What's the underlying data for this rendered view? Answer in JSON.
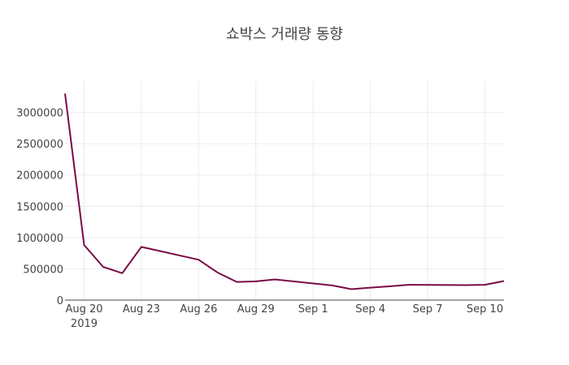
{
  "chart_data": {
    "type": "line",
    "title": "쇼박스 거래량 동향",
    "xlabel": "",
    "ylabel": "",
    "x_range": [
      "2019-08-19",
      "2019-09-11"
    ],
    "ylim": [
      0,
      3500000
    ],
    "grid": true,
    "line_color": "#7a0a46",
    "x_ticks": [
      {
        "date": "2019-08-20",
        "label": "Aug 20",
        "sublabel": "2019"
      },
      {
        "date": "2019-08-23",
        "label": "Aug 23"
      },
      {
        "date": "2019-08-26",
        "label": "Aug 26"
      },
      {
        "date": "2019-08-29",
        "label": "Aug 29"
      },
      {
        "date": "2019-09-01",
        "label": "Sep 1"
      },
      {
        "date": "2019-09-04",
        "label": "Sep 4"
      },
      {
        "date": "2019-09-07",
        "label": "Sep 7"
      },
      {
        "date": "2019-09-10",
        "label": "Sep 10"
      }
    ],
    "y_ticks": [
      {
        "value": 0,
        "label": "0"
      },
      {
        "value": 500000,
        "label": "500000"
      },
      {
        "value": 1000000,
        "label": "1000000"
      },
      {
        "value": 1500000,
        "label": "1500000"
      },
      {
        "value": 2000000,
        "label": "2000000"
      },
      {
        "value": 2500000,
        "label": "2500000"
      },
      {
        "value": 3000000,
        "label": "3000000"
      }
    ],
    "series": [
      {
        "x": [
          "2019-08-19",
          "2019-08-20",
          "2019-08-21",
          "2019-08-22",
          "2019-08-23",
          "2019-08-26",
          "2019-08-27",
          "2019-08-28",
          "2019-08-29",
          "2019-08-30",
          "2019-09-02",
          "2019-09-03",
          "2019-09-04",
          "2019-09-05",
          "2019-09-06",
          "2019-09-09",
          "2019-09-10",
          "2019-09-11"
        ],
        "values": [
          3300000,
          880000,
          530000,
          430000,
          850000,
          645000,
          440000,
          290000,
          300000,
          330000,
          235000,
          175000,
          200000,
          220000,
          245000,
          240000,
          245000,
          305000
        ]
      }
    ]
  }
}
